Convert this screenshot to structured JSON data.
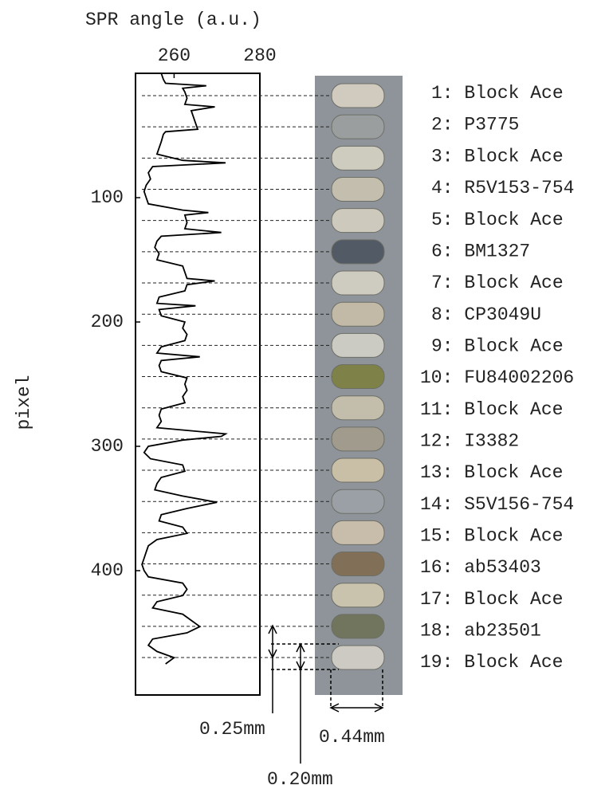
{
  "chart_data": {
    "type": "line",
    "orientation": "vertical",
    "xlabel": "SPR angle (a.u.)",
    "ylabel": "pixel",
    "xlim": [
      251,
      280
    ],
    "xticks": [
      260,
      280
    ],
    "ylim": [
      0,
      500
    ],
    "yticks": [
      100,
      200,
      300,
      400
    ],
    "y_inverted": true,
    "series": [
      {
        "color": "#000000",
        "pixel": [
          0,
          5,
          8,
          10,
          12,
          15,
          20,
          25,
          27,
          30,
          35,
          40,
          45,
          47,
          49,
          55,
          60,
          65,
          70,
          72,
          75,
          80,
          85,
          90,
          95,
          100,
          105,
          110,
          112,
          114,
          120,
          125,
          128,
          131,
          135,
          140,
          145,
          150,
          155,
          160,
          165,
          167,
          170,
          175,
          180,
          185,
          187,
          190,
          195,
          200,
          205,
          210,
          215,
          220,
          225,
          228,
          231,
          235,
          240,
          245,
          250,
          255,
          260,
          265,
          270,
          275,
          280,
          285,
          290,
          292,
          295,
          300,
          305,
          310,
          315,
          320,
          325,
          330,
          335,
          340,
          345,
          350,
          355,
          360,
          365,
          370,
          375,
          380,
          385,
          390,
          395,
          400,
          405,
          410,
          415,
          420,
          425,
          430,
          435,
          440,
          445,
          450,
          455,
          460,
          465,
          470,
          475
        ],
        "values": [
          257,
          257.5,
          258,
          267.5,
          262,
          262.5,
          263,
          262.5,
          269.5,
          264,
          264.5,
          265,
          265.5,
          258,
          257.5,
          257,
          256.5,
          256,
          262,
          272,
          255,
          254,
          254.5,
          253.5,
          253,
          253.5,
          254,
          262,
          268,
          262.5,
          263,
          262.5,
          271,
          257,
          256,
          255.5,
          256.5,
          256,
          262,
          262.5,
          263,
          269.5,
          263,
          262.5,
          256.5,
          256,
          265,
          256.5,
          257,
          262.5,
          262,
          263,
          262.5,
          257,
          256,
          266,
          257,
          256.5,
          257,
          263,
          262.5,
          263,
          262,
          262.5,
          257,
          256.5,
          257,
          256,
          272,
          271,
          262,
          254,
          253,
          254.5,
          262,
          262.5,
          257,
          256,
          255.5,
          262,
          270,
          263,
          257,
          256.5,
          262,
          263,
          256,
          254,
          253.5,
          253,
          252.5,
          253,
          254,
          262,
          263,
          262,
          256,
          255,
          262,
          264,
          266,
          263,
          255,
          254,
          256,
          260,
          258
        ]
      }
    ],
    "lanes": [
      "1: Block Ace",
      "2: P3775",
      "3: Block Ace",
      "4: R5V153-754",
      "5: Block Ace",
      "6: BM1327",
      "7: Block Ace",
      "8: CP3049U",
      "9: Block Ace",
      "10: FU84002206",
      "11: Block Ace",
      "12: I3382",
      "13: Block Ace",
      "14: S5V156-754",
      "15: Block Ace",
      "16: ab53403",
      "17: Block Ace",
      "18: ab23501",
      "19: Block Ace"
    ],
    "annotations": [
      "0.25mm",
      "0.20mm",
      "0.44mm"
    ]
  }
}
